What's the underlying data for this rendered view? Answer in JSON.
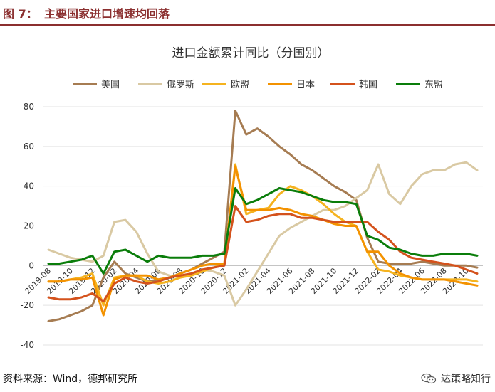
{
  "figure": {
    "label": "图 7：",
    "title": "主要国家进口增速均回落"
  },
  "source": "资料来源：Wind，德邦研究所",
  "watermark": {
    "text": "达策略知行",
    "icon": "wechat-icon"
  },
  "colors": {
    "美国": "#a67c52",
    "俄罗斯": "#d9c9a3",
    "欧盟": "#f5b31f",
    "日本": "#f39200",
    "韩国": "#d4521c",
    "东盟": "#0a7d0a",
    "header": "#8b2f2f"
  },
  "chart_data": {
    "type": "line",
    "title": "进口金额累计同比（分国别）",
    "xlabel": "",
    "ylabel": "",
    "ylim": [
      -40,
      80
    ],
    "yticks": [
      -40,
      -20,
      0,
      20,
      40,
      60,
      80
    ],
    "grid": true,
    "legend": "top",
    "x": [
      "2019-08",
      "2019-09",
      "2019-10",
      "2019-11",
      "2019-12",
      "2020-01",
      "2020-02",
      "2020-03",
      "2020-04",
      "2020-05",
      "2020-06",
      "2020-07",
      "2020-08",
      "2020-09",
      "2020-10",
      "2020-11",
      "2020-12",
      "2021-01",
      "2021-02",
      "2021-03",
      "2021-04",
      "2021-05",
      "2021-06",
      "2021-07",
      "2021-08",
      "2021-09",
      "2021-10",
      "2021-11",
      "2021-12",
      "2022-01",
      "2022-02",
      "2022-03",
      "2022-04",
      "2022-05",
      "2022-06",
      "2022-07",
      "2022-08",
      "2022-09",
      "2022-10",
      "2022-11"
    ],
    "xticklabels": [
      "2019-08",
      "2019-10",
      "2019-12",
      "2020-02",
      "2020-04",
      "2020-06",
      "2020-08",
      "2020-10",
      "2020-12",
      "2021-02",
      "2021-04",
      "2021-06",
      "2021-08",
      "2021-10",
      "2021-12",
      "2022-02",
      "2022-04",
      "2022-06",
      "2022-08",
      "2022-10"
    ],
    "series": [
      {
        "name": "美国",
        "values": [
          -28,
          -27,
          -25,
          -23,
          -20,
          -6,
          2,
          -4,
          -6,
          -8,
          -7,
          -6,
          -4,
          -2,
          1,
          4,
          7,
          78,
          66,
          69,
          65,
          60,
          56,
          51,
          48,
          44,
          40,
          37,
          33,
          14,
          2,
          1,
          1,
          1,
          2,
          1,
          0,
          0,
          0,
          -1
        ]
      },
      {
        "name": "俄罗斯",
        "values": [
          8,
          6,
          4,
          3,
          2,
          5,
          22,
          23,
          17,
          6,
          -3,
          -5,
          -6,
          -4,
          -2,
          -3,
          -5,
          -20,
          -12,
          -3,
          6,
          15,
          19,
          22,
          25,
          28,
          28,
          30,
          34,
          38,
          51,
          36,
          31,
          40,
          46,
          48,
          48,
          51,
          52,
          48
        ]
      },
      {
        "name": "欧盟",
        "values": [
          -8,
          -8,
          -7,
          -6,
          -4,
          -20,
          -6,
          -5,
          -5,
          -8,
          -9,
          -8,
          -6,
          -5,
          -3,
          -1,
          1,
          51,
          26,
          28,
          29,
          36,
          40,
          38,
          35,
          31,
          26,
          22,
          20,
          7,
          -2,
          -3,
          -5,
          -6,
          -7,
          -7,
          -7,
          -7,
          -7,
          -8
        ]
      },
      {
        "name": "日本",
        "values": [
          -8,
          -8,
          -7,
          -7,
          -6,
          -25,
          -7,
          -5,
          -5,
          -5,
          -7,
          -6,
          -4,
          -2,
          0,
          1,
          1,
          50,
          28,
          28,
          28,
          29,
          28,
          26,
          25,
          23,
          21,
          20,
          20,
          7,
          7,
          0,
          -4,
          -6,
          -7,
          -7,
          -7,
          -8,
          -9,
          -10
        ]
      },
      {
        "name": "韩国",
        "values": [
          -16,
          -17,
          -17,
          -16,
          -14,
          -18,
          -9,
          -6,
          -8,
          -9,
          -8,
          -6,
          -5,
          -4,
          -2,
          -1,
          0,
          30,
          22,
          23,
          25,
          26,
          26,
          24,
          24,
          23,
          22,
          22,
          22,
          22,
          17,
          13,
          7,
          4,
          3,
          2,
          1,
          0,
          -2,
          -4
        ]
      },
      {
        "name": "东盟",
        "values": [
          1,
          1,
          2,
          3,
          5,
          -4,
          7,
          8,
          5,
          2,
          5,
          4,
          4,
          4,
          5,
          5,
          6,
          39,
          31,
          33,
          36,
          39,
          38,
          37,
          35,
          33,
          32,
          32,
          31,
          15,
          13,
          9,
          8,
          6,
          5,
          5,
          6,
          6,
          6,
          5
        ]
      }
    ]
  }
}
